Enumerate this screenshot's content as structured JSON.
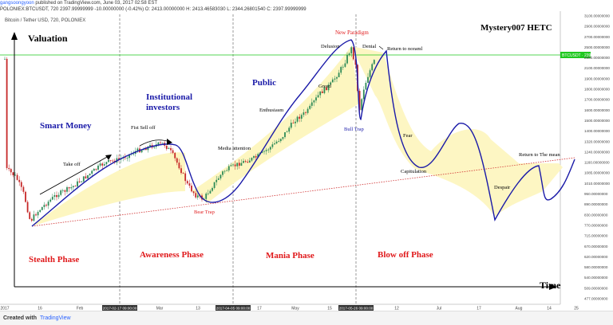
{
  "header": {
    "line1_user": "gangsoongyoon",
    "line1_rest": "published on TradingView.com, June 03, 2017 02:58 EST",
    "line2": "POLONIEX:BTCUSDT, 720  2397.99999999  -10.00000000 (-0.42%)  O: 2413.00000000  H: 2413.46583030  L: 2344.26801540  C: 2397.99999999",
    "legend": "Bitcoin / Tether USD, 720, POLONIEX"
  },
  "footer": {
    "created_with": "Created with",
    "brand": "TradingView"
  },
  "colors": {
    "accent_blue": "#1a1aa8",
    "phase_red": "#e0191b",
    "fill_yellow": "#fdf6c0",
    "price_green": "#1ec81e",
    "trend_red": "#d03030"
  },
  "chart_data": {
    "type": "line",
    "title": "Mystery007 HETC",
    "ylabel": "Valuation",
    "xlabel": "Time",
    "x_ticks": [
      "2017",
      "16",
      "Feb",
      "2017-02-17 09:00:00",
      "Mar",
      "13",
      "2017-04-05 09:00:00",
      "17",
      "May",
      "15",
      "2017-05-26 09:00:00",
      "12",
      "Jul",
      "17",
      "Aug",
      "14",
      "25"
    ],
    "y_ticks": [
      "3100.00000000",
      "2900.00000000",
      "2700.00000000",
      "2500.00000000",
      "2300.00000000",
      "2100.00000000",
      "1900.00000000",
      "1800.00000000",
      "1700.00000000",
      "1600.00000000",
      "1500.00000000",
      "1400.00000000",
      "1320.00000000",
      "1240.00000000",
      "1160.00000000",
      "1085.00000000",
      "1010.00000000",
      "950.00000000",
      "890.00000000",
      "830.00000000",
      "770.00000000",
      "715.00000000",
      "670.00000000",
      "620.00000000",
      "580.00000000",
      "540.00000000",
      "509.00000000",
      "477.00000000"
    ],
    "price_label": "BTCUSDT · 2397.99999999",
    "price_value": 2397.99999999,
    "phases": [
      "Stealth Phase",
      "Awareness Phase",
      "Mania Phase",
      "Blow off Phase"
    ],
    "groups": [
      "Smart Money",
      "Institutional investors",
      "Public"
    ],
    "stages": [
      "Take off",
      "Fist Sell off",
      "Media attention",
      "Bear Trap",
      "Enthusiasm",
      "Greed",
      "Delusion",
      "New Paradigm",
      "Denial",
      "Bull Trap",
      "Return to noraml",
      "Fear",
      "Capitulation",
      "Despair",
      "Return to The mean"
    ]
  }
}
